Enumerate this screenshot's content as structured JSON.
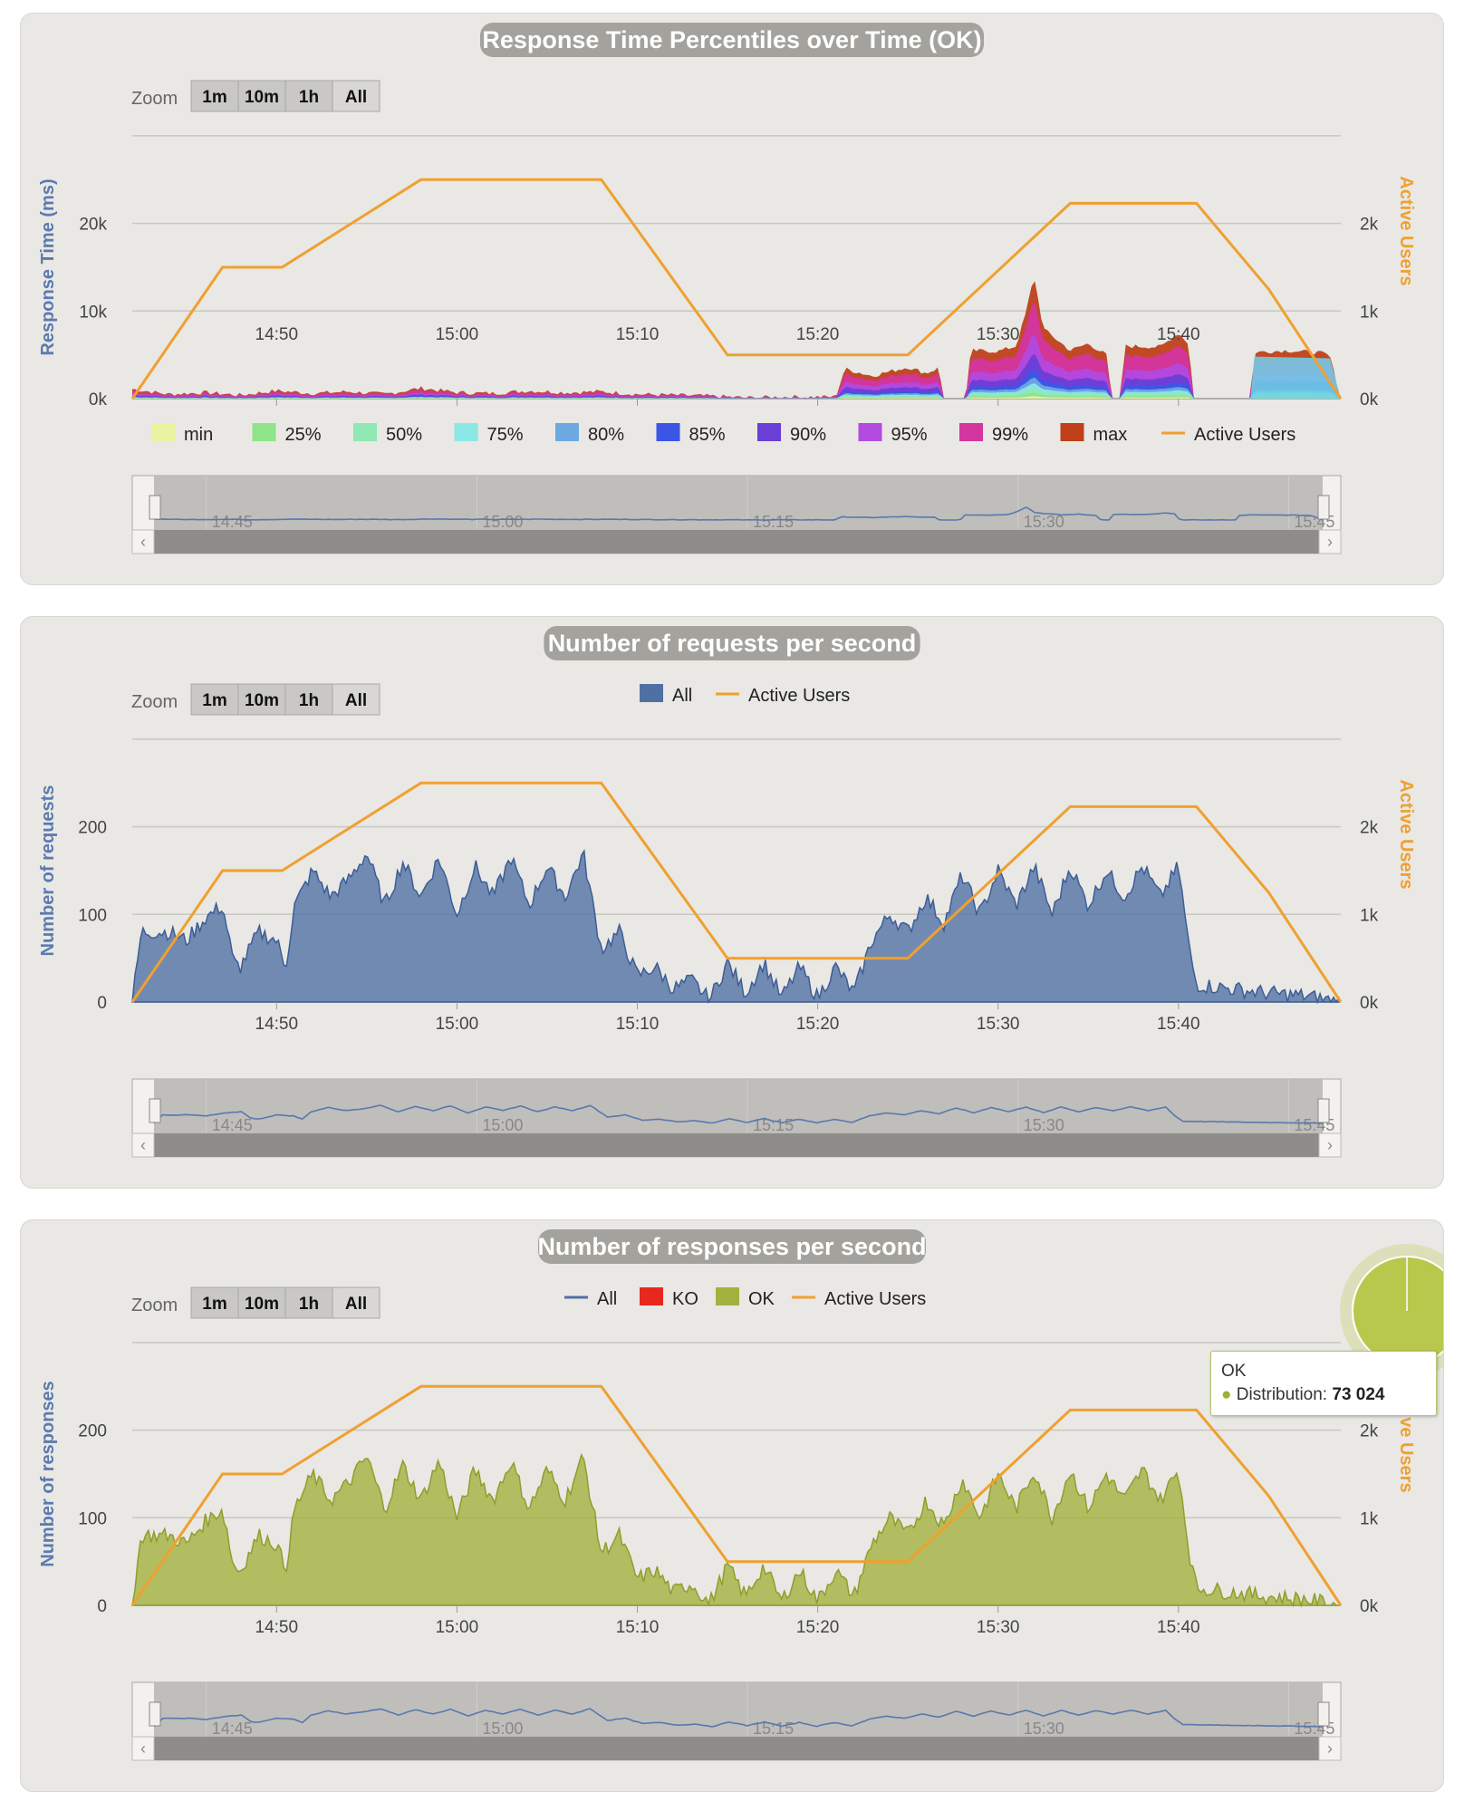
{
  "colors": {
    "active_users": "#f0a030",
    "requests": "#5070a4",
    "ok": "#a3b13f",
    "ko": "#e8281e",
    "axis_title": "#5b7ab0"
  },
  "time_axis": {
    "start": "14:42",
    "end": "15:49",
    "ticks": [
      "14:50",
      "15:00",
      "15:10",
      "15:20",
      "15:30",
      "15:40"
    ],
    "navigator_ticks": [
      "14:45",
      "15:00",
      "15:15",
      "15:30",
      "15:45"
    ]
  },
  "zoom": {
    "label": "Zoom",
    "buttons": [
      "1m",
      "10m",
      "1h",
      "All"
    ]
  },
  "chart_data": [
    {
      "type": "area",
      "title": "Response Time Percentiles over Time (OK)",
      "ylabel": "Response Time (ms)",
      "ylim": [
        0,
        30000
      ],
      "yticks": [
        "0k",
        "10k",
        "20k"
      ],
      "y2label": "Active Users",
      "y2lim": [
        0,
        3000
      ],
      "y2ticks": [
        "0k",
        "1k",
        "2k"
      ],
      "legend": [
        "min",
        "25%",
        "50%",
        "75%",
        "80%",
        "85%",
        "90%",
        "95%",
        "99%",
        "max",
        "Active Users"
      ],
      "legend_colors": [
        "#e8f4a0",
        "#8fe48a",
        "#8fe8b4",
        "#8ce8e4",
        "#6ea8e0",
        "#3b56e6",
        "#6a3fd6",
        "#b24ae0",
        "#d4359e",
        "#c0401a",
        "#f0a030"
      ],
      "active_users": [
        [
          0,
          0
        ],
        [
          5,
          1500
        ],
        [
          8.3,
          1500
        ],
        [
          16,
          2500
        ],
        [
          26,
          2500
        ],
        [
          33,
          500
        ],
        [
          43,
          500
        ],
        [
          52,
          2230
        ],
        [
          59,
          2230
        ],
        [
          63,
          1250
        ],
        [
          67,
          0
        ]
      ],
      "max_series": [
        [
          0,
          1100
        ],
        [
          2,
          500
        ],
        [
          4,
          700
        ],
        [
          6,
          400
        ],
        [
          8,
          900
        ],
        [
          10,
          600
        ],
        [
          12,
          800
        ],
        [
          14,
          500
        ],
        [
          16,
          1200
        ],
        [
          18,
          700
        ],
        [
          20,
          600
        ],
        [
          22,
          900
        ],
        [
          24,
          700
        ],
        [
          26,
          800
        ],
        [
          28,
          500
        ],
        [
          30,
          400
        ],
        [
          32,
          300
        ],
        [
          34,
          100
        ],
        [
          36,
          200
        ],
        [
          39,
          200
        ],
        [
          39.5,
          3400
        ],
        [
          41,
          2600
        ],
        [
          43,
          3600
        ],
        [
          44,
          2900
        ],
        [
          44.7,
          3500
        ],
        [
          45,
          0
        ],
        [
          46.2,
          0
        ],
        [
          46.5,
          5500
        ],
        [
          48,
          5400
        ],
        [
          49,
          6000
        ],
        [
          49.5,
          9500
        ],
        [
          50,
          14000
        ],
        [
          50.5,
          8000
        ],
        [
          52,
          5500
        ],
        [
          53,
          6300
        ],
        [
          54,
          5000
        ],
        [
          54.3,
          0
        ],
        [
          54.8,
          0
        ],
        [
          55,
          6000
        ],
        [
          57,
          5900
        ],
        [
          58,
          7500
        ],
        [
          58.6,
          6200
        ],
        [
          58.8,
          0
        ],
        [
          62,
          0
        ],
        [
          62.2,
          5300
        ],
        [
          64,
          5500
        ],
        [
          66,
          5200
        ],
        [
          66.4,
          4800
        ],
        [
          67,
          0
        ]
      ]
    },
    {
      "type": "area",
      "title": "Number of requests per second",
      "ylabel": "Number of requests",
      "ylim": [
        0,
        300
      ],
      "yticks": [
        "0",
        "100",
        "200"
      ],
      "y2label": "Active Users",
      "y2lim": [
        0,
        3000
      ],
      "y2ticks": [
        "0k",
        "1k",
        "2k"
      ],
      "legend": [
        "All",
        "Active Users"
      ],
      "series": [
        {
          "name": "All",
          "values": [
            [
              0,
              0
            ],
            [
              0.5,
              80
            ],
            [
              2,
              80
            ],
            [
              3,
              70
            ],
            [
              4,
              95
            ],
            [
              5,
              110
            ],
            [
              5.3,
              80
            ],
            [
              5.6,
              45
            ],
            [
              6,
              40
            ],
            [
              7,
              80
            ],
            [
              8,
              70
            ],
            [
              8.5,
              40
            ],
            [
              9,
              110
            ],
            [
              10,
              150
            ],
            [
              11,
              120
            ],
            [
              12,
              140
            ],
            [
              13,
              170
            ],
            [
              14,
              110
            ],
            [
              15,
              160
            ],
            [
              16,
              120
            ],
            [
              17,
              165
            ],
            [
              18,
              100
            ],
            [
              19,
              155
            ],
            [
              20,
              120
            ],
            [
              21,
              165
            ],
            [
              22,
              110
            ],
            [
              23,
              155
            ],
            [
              24,
              120
            ],
            [
              25,
              170
            ],
            [
              26,
              60
            ],
            [
              27,
              80
            ],
            [
              28,
              30
            ],
            [
              29,
              40
            ],
            [
              30,
              15
            ],
            [
              31,
              25
            ],
            [
              32,
              2
            ],
            [
              33,
              45
            ],
            [
              34,
              10
            ],
            [
              35,
              45
            ],
            [
              36,
              5
            ],
            [
              37,
              40
            ],
            [
              38,
              5
            ],
            [
              39,
              40
            ],
            [
              40,
              10
            ],
            [
              41,
              70
            ],
            [
              42,
              100
            ],
            [
              43,
              80
            ],
            [
              44,
              120
            ],
            [
              45,
              90
            ],
            [
              46,
              145
            ],
            [
              47,
              100
            ],
            [
              48,
              150
            ],
            [
              49,
              110
            ],
            [
              50,
              155
            ],
            [
              51,
              100
            ],
            [
              52,
              155
            ],
            [
              53,
              110
            ],
            [
              54,
              150
            ],
            [
              55,
              120
            ],
            [
              56,
              155
            ],
            [
              57,
              120
            ],
            [
              58,
              155
            ],
            [
              58.6,
              60
            ],
            [
              59,
              20
            ],
            [
              61,
              15
            ],
            [
              63,
              10
            ],
            [
              65,
              7
            ],
            [
              67,
              0
            ]
          ]
        }
      ],
      "active_users": [
        [
          0,
          0
        ],
        [
          5,
          1500
        ],
        [
          8.3,
          1500
        ],
        [
          16,
          2500
        ],
        [
          26,
          2500
        ],
        [
          33,
          500
        ],
        [
          43,
          500
        ],
        [
          52,
          2230
        ],
        [
          59,
          2230
        ],
        [
          63,
          1250
        ],
        [
          67,
          0
        ]
      ]
    },
    {
      "type": "area",
      "title": "Number of responses per second",
      "ylabel": "Number of responses",
      "ylim": [
        0,
        300
      ],
      "yticks": [
        "0",
        "100",
        "200"
      ],
      "y2label": "Active Users",
      "y2lim": [
        0,
        3000
      ],
      "y2ticks": [
        "0k",
        "1k",
        "2k"
      ],
      "legend": [
        "All",
        "KO",
        "OK",
        "Active Users"
      ],
      "series": [
        {
          "name": "OK",
          "values": [
            [
              0,
              0
            ],
            [
              0.5,
              80
            ],
            [
              2,
              80
            ],
            [
              3,
              70
            ],
            [
              4,
              95
            ],
            [
              5,
              110
            ],
            [
              5.3,
              80
            ],
            [
              5.6,
              45
            ],
            [
              6,
              40
            ],
            [
              7,
              80
            ],
            [
              8,
              70
            ],
            [
              8.5,
              40
            ],
            [
              9,
              110
            ],
            [
              10,
              150
            ],
            [
              11,
              120
            ],
            [
              12,
              140
            ],
            [
              13,
              170
            ],
            [
              14,
              110
            ],
            [
              15,
              160
            ],
            [
              16,
              120
            ],
            [
              17,
              165
            ],
            [
              18,
              100
            ],
            [
              19,
              155
            ],
            [
              20,
              120
            ],
            [
              21,
              165
            ],
            [
              22,
              110
            ],
            [
              23,
              155
            ],
            [
              24,
              120
            ],
            [
              25,
              170
            ],
            [
              26,
              60
            ],
            [
              27,
              80
            ],
            [
              28,
              30
            ],
            [
              29,
              40
            ],
            [
              30,
              15
            ],
            [
              31,
              25
            ],
            [
              32,
              2
            ],
            [
              33,
              45
            ],
            [
              34,
              10
            ],
            [
              35,
              45
            ],
            [
              36,
              5
            ],
            [
              37,
              40
            ],
            [
              38,
              5
            ],
            [
              39,
              40
            ],
            [
              40,
              10
            ],
            [
              41,
              70
            ],
            [
              42,
              100
            ],
            [
              43,
              80
            ],
            [
              44,
              120
            ],
            [
              45,
              90
            ],
            [
              46,
              145
            ],
            [
              47,
              100
            ],
            [
              48,
              150
            ],
            [
              49,
              110
            ],
            [
              50,
              155
            ],
            [
              51,
              100
            ],
            [
              52,
              155
            ],
            [
              53,
              110
            ],
            [
              54,
              150
            ],
            [
              55,
              120
            ],
            [
              56,
              155
            ],
            [
              57,
              120
            ],
            [
              58,
              155
            ],
            [
              58.6,
              60
            ],
            [
              59,
              20
            ],
            [
              61,
              15
            ],
            [
              63,
              10
            ],
            [
              65,
              7
            ],
            [
              67,
              0
            ]
          ]
        }
      ],
      "active_users": [
        [
          0,
          0
        ],
        [
          5,
          1500
        ],
        [
          8.3,
          1500
        ],
        [
          16,
          2500
        ],
        [
          26,
          2500
        ],
        [
          33,
          500
        ],
        [
          43,
          500
        ],
        [
          52,
          2230
        ],
        [
          59,
          2230
        ],
        [
          63,
          1250
        ],
        [
          67,
          0
        ]
      ],
      "tooltip": {
        "title": "OK",
        "label": "Distribution:",
        "value": "73 024"
      }
    }
  ]
}
